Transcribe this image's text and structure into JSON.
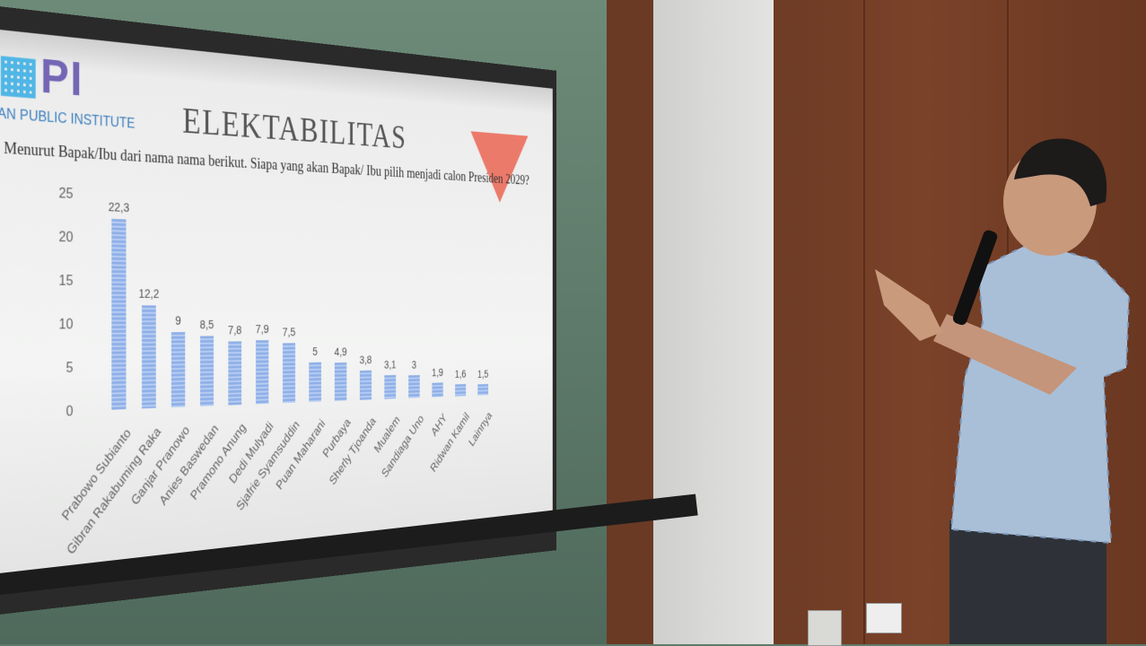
{
  "slide": {
    "logo_text": "PI",
    "logo_subtitle": "AN PUBLIC INSTITUTE",
    "title": "ELEKTABILITAS",
    "question": "Menurut Bapak/Ibu dari nama nama berikut. Siapa yang akan Bapak/ Ibu pilih menjadi calon Presiden 2029?",
    "accent_color": "#ec7a6a"
  },
  "chart_data": {
    "type": "bar",
    "categories": [
      "Prabowo Subianto",
      "Gibran Rakabuming Raka",
      "Ganjar Pranowo",
      "Anies Baswedan",
      "Pramono Anung",
      "Dedi Mulyadi",
      "Sjafrie Syamsuddin",
      "Puan Maharani",
      "Purbaya",
      "Sherly Tjoanda",
      "Mualem",
      "Sandiaga Uno",
      "AHY",
      "Ridwan Kamil",
      "Lainnya"
    ],
    "values": [
      22.3,
      12.2,
      9,
      8.5,
      7.8,
      7.9,
      7.5,
      5,
      4.9,
      3.8,
      3.1,
      3,
      1.9,
      1.6,
      1.5
    ],
    "data_labels": [
      "22,3",
      "12,2",
      "9",
      "8,5",
      "7,8",
      "7,9",
      "7,5",
      "5",
      "4,9",
      "3,8",
      "3,1",
      "3",
      "1,9",
      "1,6",
      "1,5"
    ],
    "yticks": [
      "0",
      "5",
      "10",
      "15",
      "20",
      "25"
    ],
    "ylim": [
      0,
      25
    ],
    "grid": false,
    "bar_color": "#8fb0e8"
  }
}
